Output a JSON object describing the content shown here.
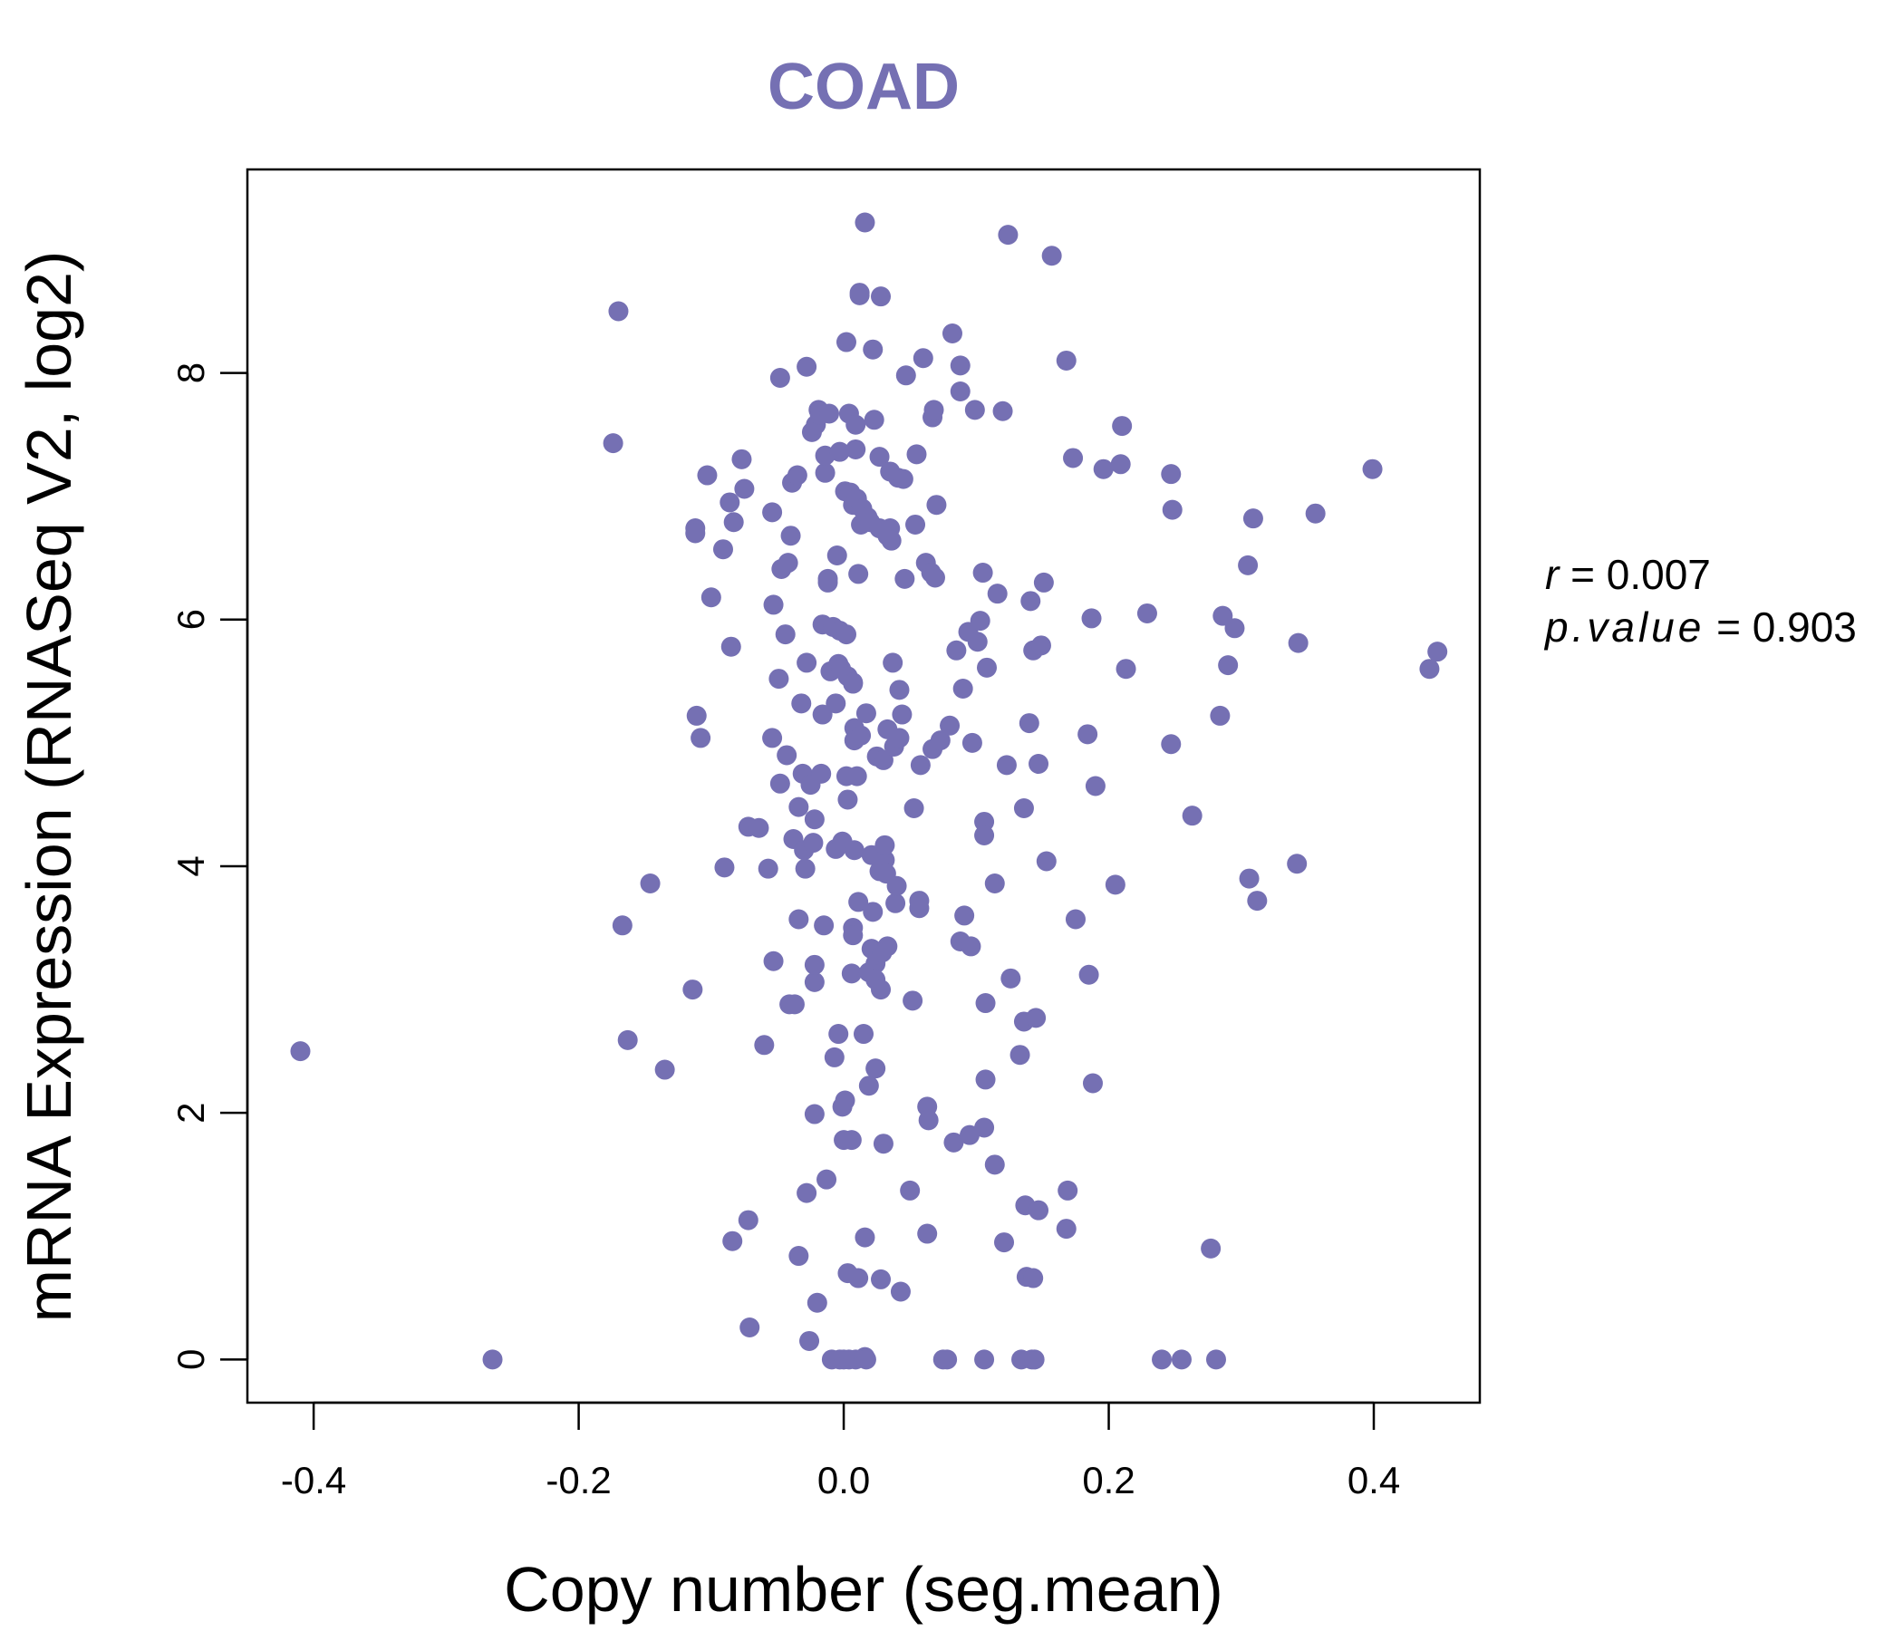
{
  "colors": {
    "accent": "#7570b3",
    "axis": "#000000",
    "background": "#ffffff"
  },
  "chart_data": {
    "type": "scatter",
    "title": "COAD",
    "xlabel": "Copy number (seg.mean)",
    "ylabel": "mRNA Expression (RNASeq V2, log2)",
    "xlim": [
      -0.45,
      0.48
    ],
    "ylim": [
      -0.35,
      9.65
    ],
    "x_ticks": [
      -0.4,
      -0.2,
      0.0,
      0.2,
      0.4
    ],
    "x_tick_labels": [
      "-0.4",
      "-0.2",
      "0.0",
      "0.2",
      "0.4"
    ],
    "y_ticks": [
      0,
      2,
      4,
      6,
      8
    ],
    "y_tick_labels": [
      "0",
      "2",
      "4",
      "6",
      "8"
    ],
    "grid": false,
    "legend": "none",
    "annotations": {
      "r_label": "r",
      "r_value": "0.007",
      "p_label": "p.value",
      "p_value": "0.903"
    },
    "series": [
      {
        "color": "#7570b3",
        "points": [
          [
            -0.41,
            2.5
          ],
          [
            -0.265,
            0.0
          ],
          [
            -0.17,
            8.5
          ],
          [
            -0.174,
            7.43
          ],
          [
            -0.167,
            3.52
          ],
          [
            -0.163,
            2.59
          ],
          [
            -0.146,
            3.86
          ],
          [
            -0.135,
            2.35
          ],
          [
            -0.114,
            3.0
          ],
          [
            -0.112,
            6.74
          ],
          [
            -0.112,
            6.7
          ],
          [
            -0.111,
            5.22
          ],
          [
            -0.108,
            5.04
          ],
          [
            -0.103,
            7.17
          ],
          [
            -0.1,
            6.18
          ],
          [
            -0.091,
            6.57
          ],
          [
            -0.09,
            3.99
          ],
          [
            -0.086,
            6.95
          ],
          [
            -0.085,
            5.78
          ],
          [
            -0.084,
            0.96
          ],
          [
            -0.083,
            6.79
          ],
          [
            -0.077,
            7.3
          ],
          [
            -0.075,
            7.06
          ],
          [
            -0.072,
            4.32
          ],
          [
            -0.072,
            1.13
          ],
          [
            -0.071,
            0.26
          ],
          [
            -0.064,
            4.31
          ],
          [
            -0.06,
            2.55
          ],
          [
            -0.057,
            3.98
          ],
          [
            -0.054,
            6.87
          ],
          [
            -0.054,
            5.04
          ],
          [
            -0.053,
            6.12
          ],
          [
            -0.053,
            3.23
          ],
          [
            -0.049,
            5.52
          ],
          [
            -0.048,
            7.96
          ],
          [
            -0.048,
            4.67
          ],
          [
            -0.047,
            6.41
          ],
          [
            -0.044,
            5.88
          ],
          [
            -0.043,
            4.9
          ],
          [
            -0.042,
            6.46
          ],
          [
            -0.041,
            2.88
          ],
          [
            -0.04,
            6.68
          ],
          [
            -0.039,
            7.11
          ],
          [
            -0.038,
            4.22
          ],
          [
            -0.037,
            2.88
          ],
          [
            -0.035,
            7.17
          ],
          [
            -0.034,
            4.48
          ],
          [
            -0.034,
            3.57
          ],
          [
            -0.034,
            0.84
          ],
          [
            -0.032,
            5.32
          ],
          [
            -0.031,
            4.75
          ],
          [
            -0.03,
            4.13
          ],
          [
            -0.029,
            3.98
          ],
          [
            -0.028,
            1.35
          ],
          [
            -0.028,
            5.65
          ],
          [
            -0.028,
            8.05
          ],
          [
            -0.026,
            0.15
          ],
          [
            -0.025,
            4.66
          ],
          [
            -0.024,
            7.52
          ],
          [
            -0.023,
            4.19
          ],
          [
            -0.022,
            4.38
          ],
          [
            -0.022,
            3.06
          ],
          [
            -0.022,
            3.2
          ],
          [
            -0.022,
            1.99
          ],
          [
            -0.021,
            7.58
          ],
          [
            -0.02,
            0.46
          ],
          [
            -0.019,
            7.7
          ],
          [
            -0.018,
            7.66
          ],
          [
            -0.017,
            4.75
          ],
          [
            -0.016,
            5.96
          ],
          [
            -0.016,
            5.23
          ],
          [
            -0.015,
            3.52
          ],
          [
            -0.014,
            7.19
          ],
          [
            -0.014,
            7.33
          ],
          [
            -0.013,
            1.46
          ],
          [
            -0.012,
            6.33
          ],
          [
            -0.012,
            6.3
          ],
          [
            -0.011,
            7.67
          ],
          [
            -0.01,
            5.58
          ],
          [
            -0.009,
            0.0
          ],
          [
            -0.008,
            5.94
          ],
          [
            -0.007,
            2.45
          ],
          [
            -0.006,
            5.32
          ],
          [
            -0.006,
            4.14
          ],
          [
            -0.005,
            6.52
          ],
          [
            -0.004,
            2.64
          ],
          [
            -0.004,
            5.64
          ],
          [
            -0.003,
            7.36
          ],
          [
            -0.003,
            0.0
          ],
          [
            -0.003,
            5.91
          ],
          [
            -0.002,
            5.6
          ],
          [
            -0.001,
            2.05
          ],
          [
            -0.001,
            4.2
          ],
          [
            0.0,
            1.78
          ],
          [
            0.0,
            0.0
          ],
          [
            0.001,
            7.04
          ],
          [
            0.001,
            2.1
          ],
          [
            0.002,
            4.73
          ],
          [
            0.002,
            8.25
          ],
          [
            0.002,
            5.88
          ],
          [
            0.003,
            4.54
          ],
          [
            0.003,
            0.7
          ],
          [
            0.003,
            5.54
          ],
          [
            0.004,
            7.67
          ],
          [
            0.004,
            0.0
          ],
          [
            0.005,
            7.03
          ],
          [
            0.006,
            1.78
          ],
          [
            0.006,
            3.13
          ],
          [
            0.007,
            5.49
          ],
          [
            0.007,
            3.5
          ],
          [
            0.007,
            3.44
          ],
          [
            0.007,
            6.93
          ],
          [
            0.007,
            5.48
          ],
          [
            0.008,
            4.13
          ],
          [
            0.008,
            5.12
          ],
          [
            0.008,
            5.02
          ],
          [
            0.009,
            7.58
          ],
          [
            0.009,
            7.38
          ],
          [
            0.009,
            0.0
          ],
          [
            0.01,
            6.98
          ],
          [
            0.01,
            4.73
          ],
          [
            0.011,
            0.66
          ],
          [
            0.011,
            3.71
          ],
          [
            0.011,
            6.37
          ],
          [
            0.012,
            8.63
          ],
          [
            0.012,
            8.65
          ],
          [
            0.013,
            6.77
          ],
          [
            0.013,
            5.06
          ],
          [
            0.014,
            6.9
          ],
          [
            0.015,
            2.64
          ],
          [
            0.016,
            9.22
          ],
          [
            0.016,
            0.99
          ],
          [
            0.016,
            0.02
          ],
          [
            0.017,
            0.0
          ],
          [
            0.017,
            5.24
          ],
          [
            0.018,
            6.83
          ],
          [
            0.019,
            2.22
          ],
          [
            0.019,
            3.14
          ],
          [
            0.02,
            6.79
          ],
          [
            0.021,
            4.09
          ],
          [
            0.021,
            3.33
          ],
          [
            0.022,
            3.63
          ],
          [
            0.022,
            8.19
          ],
          [
            0.023,
            7.62
          ],
          [
            0.024,
            2.36
          ],
          [
            0.024,
            3.21
          ],
          [
            0.024,
            3.08
          ],
          [
            0.025,
            4.89
          ],
          [
            0.026,
            3.28
          ],
          [
            0.027,
            7.32
          ],
          [
            0.027,
            3.96
          ],
          [
            0.027,
            6.74
          ],
          [
            0.028,
            0.65
          ],
          [
            0.028,
            3.0
          ],
          [
            0.028,
            8.62
          ],
          [
            0.029,
            3.3
          ],
          [
            0.03,
            4.86
          ],
          [
            0.03,
            1.75
          ],
          [
            0.031,
            4.05
          ],
          [
            0.031,
            4.17
          ],
          [
            0.032,
            3.94
          ],
          [
            0.033,
            6.68
          ],
          [
            0.033,
            5.11
          ],
          [
            0.033,
            3.35
          ],
          [
            0.035,
            6.74
          ],
          [
            0.035,
            7.2
          ],
          [
            0.036,
            6.64
          ],
          [
            0.037,
            5.65
          ],
          [
            0.038,
            4.97
          ],
          [
            0.039,
            3.7
          ],
          [
            0.04,
            3.84
          ],
          [
            0.041,
            7.15
          ],
          [
            0.042,
            5.04
          ],
          [
            0.042,
            5.43
          ],
          [
            0.043,
            0.55
          ],
          [
            0.044,
            5.23
          ],
          [
            0.045,
            7.14
          ],
          [
            0.046,
            6.33
          ],
          [
            0.047,
            7.98
          ],
          [
            0.05,
            1.37
          ],
          [
            0.052,
            2.91
          ],
          [
            0.053,
            4.47
          ],
          [
            0.054,
            6.77
          ],
          [
            0.055,
            7.34
          ],
          [
            0.057,
            3.66
          ],
          [
            0.057,
            3.72
          ],
          [
            0.058,
            4.82
          ],
          [
            0.06,
            8.12
          ],
          [
            0.062,
            6.46
          ],
          [
            0.063,
            1.02
          ],
          [
            0.063,
            2.05
          ],
          [
            0.064,
            1.94
          ],
          [
            0.066,
            6.38
          ],
          [
            0.067,
            4.95
          ],
          [
            0.067,
            7.64
          ],
          [
            0.068,
            7.7
          ],
          [
            0.069,
            6.34
          ],
          [
            0.07,
            6.93
          ],
          [
            0.073,
            5.02
          ],
          [
            0.075,
            0.0
          ],
          [
            0.078,
            0.0
          ],
          [
            0.08,
            5.14
          ],
          [
            0.082,
            8.32
          ],
          [
            0.083,
            1.76
          ],
          [
            0.085,
            5.75
          ],
          [
            0.088,
            8.06
          ],
          [
            0.088,
            3.39
          ],
          [
            0.088,
            7.85
          ],
          [
            0.09,
            5.44
          ],
          [
            0.091,
            3.6
          ],
          [
            0.094,
            5.9
          ],
          [
            0.095,
            1.82
          ],
          [
            0.096,
            3.35
          ],
          [
            0.097,
            5.0
          ],
          [
            0.099,
            7.7
          ],
          [
            0.101,
            5.82
          ],
          [
            0.103,
            5.99
          ],
          [
            0.105,
            6.38
          ],
          [
            0.106,
            1.88
          ],
          [
            0.106,
            4.36
          ],
          [
            0.106,
            4.25
          ],
          [
            0.106,
            0.0
          ],
          [
            0.107,
            2.89
          ],
          [
            0.107,
            2.27
          ],
          [
            0.108,
            5.61
          ],
          [
            0.114,
            3.86
          ],
          [
            0.114,
            1.58
          ],
          [
            0.116,
            6.21
          ],
          [
            0.12,
            7.69
          ],
          [
            0.121,
            0.95
          ],
          [
            0.123,
            4.82
          ],
          [
            0.124,
            9.12
          ],
          [
            0.126,
            3.09
          ],
          [
            0.133,
            2.47
          ],
          [
            0.134,
            0.0
          ],
          [
            0.136,
            2.74
          ],
          [
            0.136,
            4.47
          ],
          [
            0.137,
            1.25
          ],
          [
            0.138,
            0.67
          ],
          [
            0.14,
            5.16
          ],
          [
            0.141,
            6.15
          ],
          [
            0.142,
            0.0
          ],
          [
            0.143,
            0.66
          ],
          [
            0.143,
            5.75
          ],
          [
            0.144,
            0.0
          ],
          [
            0.145,
            2.77
          ],
          [
            0.147,
            1.21
          ],
          [
            0.147,
            4.83
          ],
          [
            0.149,
            5.79
          ],
          [
            0.151,
            6.3
          ],
          [
            0.153,
            4.04
          ],
          [
            0.157,
            8.95
          ],
          [
            0.168,
            8.1
          ],
          [
            0.168,
            1.06
          ],
          [
            0.169,
            1.37
          ],
          [
            0.173,
            7.31
          ],
          [
            0.175,
            3.57
          ],
          [
            0.184,
            5.07
          ],
          [
            0.185,
            3.12
          ],
          [
            0.187,
            6.01
          ],
          [
            0.188,
            2.24
          ],
          [
            0.19,
            4.65
          ],
          [
            0.196,
            7.22
          ],
          [
            0.205,
            3.85
          ],
          [
            0.209,
            7.26
          ],
          [
            0.21,
            7.57
          ],
          [
            0.213,
            5.6
          ],
          [
            0.229,
            6.05
          ],
          [
            0.24,
            0.0
          ],
          [
            0.247,
            7.18
          ],
          [
            0.247,
            4.99
          ],
          [
            0.248,
            6.89
          ],
          [
            0.255,
            0.0
          ],
          [
            0.263,
            4.41
          ],
          [
            0.277,
            0.9
          ],
          [
            0.281,
            0.0
          ],
          [
            0.284,
            5.22
          ],
          [
            0.286,
            6.03
          ],
          [
            0.29,
            5.63
          ],
          [
            0.295,
            5.93
          ],
          [
            0.305,
            6.44
          ],
          [
            0.306,
            3.9
          ],
          [
            0.309,
            6.82
          ],
          [
            0.312,
            3.72
          ],
          [
            0.342,
            4.02
          ],
          [
            0.343,
            5.81
          ],
          [
            0.356,
            6.86
          ],
          [
            0.399,
            7.22
          ],
          [
            0.442,
            5.6
          ],
          [
            0.448,
            5.74
          ]
        ]
      }
    ]
  }
}
